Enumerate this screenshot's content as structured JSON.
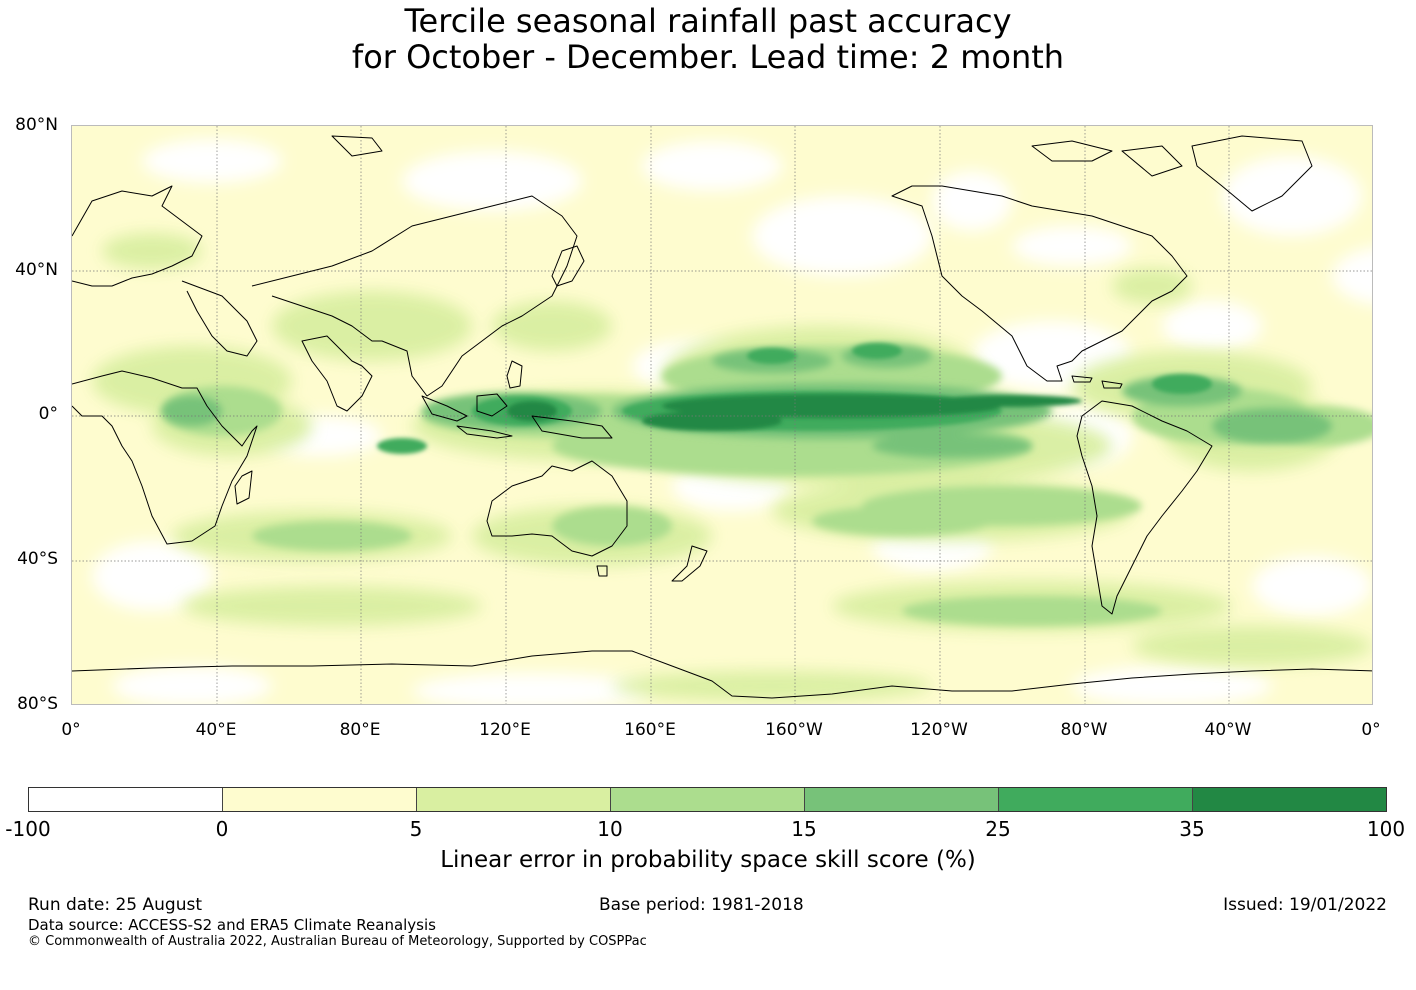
{
  "title": {
    "line1": "Tercile seasonal rainfall past accuracy",
    "line2": "for October - December. Lead time: 2 month"
  },
  "map": {
    "lat_labels": [
      "80°N",
      "40°N",
      "0°",
      "40°S",
      "80°S"
    ],
    "lon_labels": [
      "0°",
      "40°E",
      "80°E",
      "120°E",
      "160°E",
      "160°W",
      "120°W",
      "80°W",
      "40°W",
      "0°"
    ],
    "colors": {
      "ocean_base": "#fefccf",
      "coastline": "#000000",
      "gridline": "#777777"
    }
  },
  "colorbar": {
    "ticks": [
      "-100",
      "0",
      "5",
      "10",
      "15",
      "25",
      "35",
      "100"
    ],
    "colors": [
      "#ffffff",
      "#fefccf",
      "#d9efa1",
      "#acdd8e",
      "#77c279",
      "#40ab5d",
      "#228844"
    ],
    "label": "Linear error in probability space skill score (%)"
  },
  "footer": {
    "run_date": "Run date: 25 August",
    "base_period": "Base period: 1981-2018",
    "issued": "Issued: 19/01/2022",
    "data_source": "Data source: ACCESS-S2 and ERA5 Climate Reanalysis",
    "copyright": "© Commonwealth of Australia 2022, Australian Bureau of Meteorology, Supported by COSPPac"
  }
}
